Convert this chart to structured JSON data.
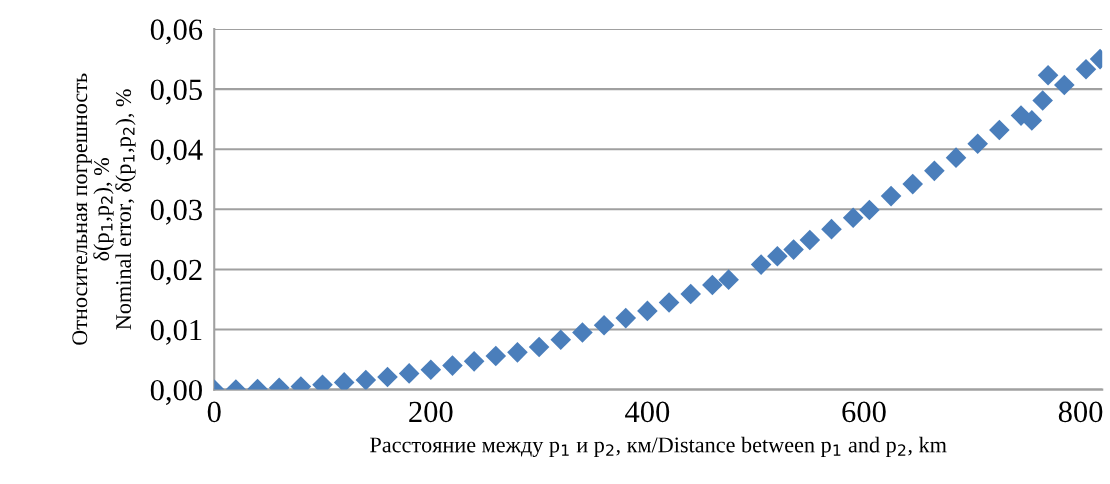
{
  "chart_data": {
    "type": "scatter",
    "xlabel": "Расстояние между p$_{1}$ и p$_{2}$, км/Distance between p$_{1}$ and p$_{2}$, km",
    "ylabel": "Относительная погрешность\nδ(p$_{1}$,p$_{2}$), %\nNominal error, δ(p$_{1}$,p$_{2}$), %",
    "series": [
      {
        "color": "#4a7ebb",
        "x": [
          0,
          20,
          40,
          60,
          80,
          100,
          120,
          140,
          160,
          180,
          200,
          220,
          240,
          260,
          280,
          300,
          320,
          340,
          360,
          380,
          400,
          420,
          440,
          460,
          475,
          505,
          520,
          535,
          550,
          570,
          590,
          605,
          625,
          645,
          665,
          685,
          705,
          725,
          745,
          755,
          765,
          770,
          785,
          805,
          818
        ],
        "values": [
          0,
          0.0,
          0.0001,
          0.0003,
          0.0005,
          0.0008,
          0.0012,
          0.0016,
          0.0021,
          0.0027,
          0.0033,
          0.004,
          0.0047,
          0.0056,
          0.0062,
          0.0071,
          0.0083,
          0.0095,
          0.0107,
          0.0119,
          0.0131,
          0.0145,
          0.0159,
          0.0174,
          0.0183,
          0.0208,
          0.0222,
          0.0233,
          0.0249,
          0.0267,
          0.0286,
          0.0299,
          0.0322,
          0.0342,
          0.0364,
          0.0386,
          0.0409,
          0.0432,
          0.0456,
          0.0448,
          0.0481,
          0.0523,
          0.0507,
          0.0533,
          0.055
        ]
      }
    ],
    "xlim": [
      0,
      820
    ],
    "xticks": [
      0,
      200,
      400,
      600,
      800
    ],
    "ylim": [
      0,
      0.06
    ],
    "yticks": [
      {
        "value": 0,
        "label": "0,00"
      },
      {
        "value": 0.01,
        "label": "0,01"
      },
      {
        "value": 0.02,
        "label": "0,02"
      },
      {
        "value": 0.03,
        "label": "0,03"
      },
      {
        "value": 0.04,
        "label": "0,04"
      },
      {
        "value": 0.05,
        "label": "0,05"
      },
      {
        "value": 0.06,
        "label": "0,06"
      }
    ],
    "grid": "y",
    "marker": "diamond"
  }
}
